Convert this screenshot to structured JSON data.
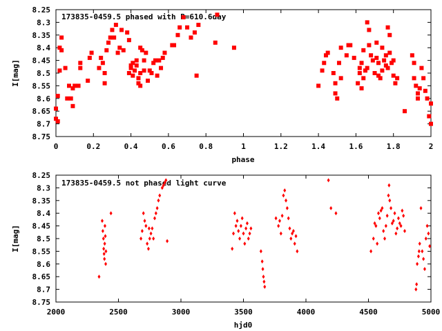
{
  "chart_data": [
    {
      "type": "scatter",
      "title": "173835-0459.5 phased with P=610.6day",
      "xlabel": "phase",
      "ylabel": "I[mag]",
      "xlim": [
        0,
        2
      ],
      "ylim": [
        8.25,
        8.75
      ],
      "y_inverted": true,
      "x_ticks": [
        "0",
        "0.2",
        "0.4",
        "0.6",
        "0.8",
        "1",
        "1.2",
        "1.4",
        "1.6",
        "1.8",
        "2"
      ],
      "y_ticks": [
        "8.25",
        "8.3",
        "8.35",
        "8.4",
        "8.45",
        "8.5",
        "8.55",
        "8.6",
        "8.65",
        "8.7",
        "8.75"
      ],
      "marker_color": "#ff0000",
      "marker": "filled-square",
      "points": [
        [
          0.0,
          8.64
        ],
        [
          0.0,
          8.68
        ],
        [
          0.01,
          8.69
        ],
        [
          0.01,
          8.59
        ],
        [
          0.02,
          8.49
        ],
        [
          0.02,
          8.4
        ],
        [
          0.03,
          8.36
        ],
        [
          0.03,
          8.41
        ],
        [
          0.05,
          8.48
        ],
        [
          0.06,
          8.6
        ],
        [
          0.07,
          8.55
        ],
        [
          0.08,
          8.6
        ],
        [
          0.09,
          8.63
        ],
        [
          0.09,
          8.56
        ],
        [
          0.1,
          8.55
        ],
        [
          0.12,
          8.55
        ],
        [
          0.13,
          8.48
        ],
        [
          0.13,
          8.46
        ],
        [
          0.17,
          8.53
        ],
        [
          0.18,
          8.44
        ],
        [
          0.19,
          8.42
        ],
        [
          0.23,
          8.48
        ],
        [
          0.24,
          8.44
        ],
        [
          0.25,
          8.46
        ],
        [
          0.26,
          8.5
        ],
        [
          0.26,
          8.54
        ],
        [
          0.27,
          8.41
        ],
        [
          0.28,
          8.38
        ],
        [
          0.29,
          8.36
        ],
        [
          0.3,
          8.33
        ],
        [
          0.31,
          8.36
        ],
        [
          0.32,
          8.31
        ],
        [
          0.33,
          8.42
        ],
        [
          0.34,
          8.4
        ],
        [
          0.35,
          8.33
        ],
        [
          0.36,
          8.41
        ],
        [
          0.38,
          8.34
        ],
        [
          0.39,
          8.37
        ],
        [
          0.39,
          8.5
        ],
        [
          0.4,
          8.48
        ],
        [
          0.4,
          8.47
        ],
        [
          0.41,
          8.46
        ],
        [
          0.41,
          8.51
        ],
        [
          0.42,
          8.49
        ],
        [
          0.43,
          8.45
        ],
        [
          0.43,
          8.47
        ],
        [
          0.44,
          8.52
        ],
        [
          0.44,
          8.54
        ],
        [
          0.45,
          8.5
        ],
        [
          0.45,
          8.55
        ],
        [
          0.45,
          8.4
        ],
        [
          0.46,
          8.41
        ],
        [
          0.47,
          8.49
        ],
        [
          0.47,
          8.45
        ],
        [
          0.48,
          8.42
        ],
        [
          0.49,
          8.53
        ],
        [
          0.5,
          8.49
        ],
        [
          0.51,
          8.5
        ],
        [
          0.52,
          8.46
        ],
        [
          0.53,
          8.45
        ],
        [
          0.54,
          8.51
        ],
        [
          0.55,
          8.45
        ],
        [
          0.56,
          8.48
        ],
        [
          0.57,
          8.44
        ],
        [
          0.58,
          8.42
        ],
        [
          0.62,
          8.39
        ],
        [
          0.63,
          8.39
        ],
        [
          0.65,
          8.35
        ],
        [
          0.66,
          8.32
        ],
        [
          0.68,
          8.28
        ],
        [
          0.7,
          8.32
        ],
        [
          0.72,
          8.36
        ],
        [
          0.74,
          8.34
        ],
        [
          0.75,
          8.51
        ],
        [
          0.76,
          8.31
        ],
        [
          0.85,
          8.38
        ],
        [
          0.86,
          8.27
        ],
        [
          0.95,
          8.4
        ],
        [
          1.4,
          8.55
        ],
        [
          1.42,
          8.49
        ],
        [
          1.43,
          8.46
        ],
        [
          1.44,
          8.43
        ],
        [
          1.45,
          8.42
        ],
        [
          1.48,
          8.5
        ],
        [
          1.49,
          8.58
        ],
        [
          1.49,
          8.54
        ],
        [
          1.5,
          8.6
        ],
        [
          1.51,
          8.46
        ],
        [
          1.52,
          8.4
        ],
        [
          1.52,
          8.52
        ],
        [
          1.55,
          8.43
        ],
        [
          1.56,
          8.39
        ],
        [
          1.57,
          8.39
        ],
        [
          1.59,
          8.44
        ],
        [
          1.61,
          8.54
        ],
        [
          1.62,
          8.48
        ],
        [
          1.62,
          8.5
        ],
        [
          1.63,
          8.46
        ],
        [
          1.63,
          8.56
        ],
        [
          1.64,
          8.41
        ],
        [
          1.64,
          8.52
        ],
        [
          1.65,
          8.49
        ],
        [
          1.66,
          8.48
        ],
        [
          1.66,
          8.3
        ],
        [
          1.67,
          8.33
        ],
        [
          1.67,
          8.39
        ],
        [
          1.68,
          8.43
        ],
        [
          1.69,
          8.45
        ],
        [
          1.7,
          8.5
        ],
        [
          1.71,
          8.38
        ],
        [
          1.71,
          8.44
        ],
        [
          1.72,
          8.46
        ],
        [
          1.72,
          8.51
        ],
        [
          1.73,
          8.52
        ],
        [
          1.74,
          8.49
        ],
        [
          1.74,
          8.4
        ],
        [
          1.75,
          8.45
        ],
        [
          1.76,
          8.43
        ],
        [
          1.76,
          8.47
        ],
        [
          1.77,
          8.32
        ],
        [
          1.77,
          8.48
        ],
        [
          1.78,
          8.42
        ],
        [
          1.78,
          8.35
        ],
        [
          1.79,
          8.46
        ],
        [
          1.8,
          8.45
        ],
        [
          1.8,
          8.51
        ],
        [
          1.81,
          8.54
        ],
        [
          1.82,
          8.52
        ],
        [
          1.86,
          8.65
        ],
        [
          1.9,
          8.43
        ],
        [
          1.91,
          8.46
        ],
        [
          1.91,
          8.52
        ],
        [
          1.92,
          8.55
        ],
        [
          1.93,
          8.58
        ],
        [
          1.93,
          8.6
        ],
        [
          1.94,
          8.56
        ],
        [
          1.95,
          8.48
        ],
        [
          1.96,
          8.52
        ],
        [
          1.97,
          8.57
        ],
        [
          1.98,
          8.6
        ],
        [
          1.99,
          8.67
        ],
        [
          2.0,
          8.7
        ],
        [
          2.0,
          8.62
        ]
      ]
    },
    {
      "type": "scatter",
      "title": "173835-0459.5 not phased light curve",
      "xlabel": "hjd0",
      "ylabel": "I[mag]",
      "xlim": [
        2000,
        5000
      ],
      "ylim": [
        8.25,
        8.75
      ],
      "y_inverted": true,
      "x_ticks": [
        "2000",
        "2500",
        "3000",
        "3500",
        "4000",
        "4500",
        "5000"
      ],
      "y_ticks": [
        "8.25",
        "8.3",
        "8.35",
        "8.4",
        "8.45",
        "8.5",
        "8.55",
        "8.6",
        "8.65",
        "8.7",
        "8.75"
      ],
      "marker_color": "#ff0000",
      "marker": "filled-diamond",
      "points": [
        [
          2345,
          8.65
        ],
        [
          2370,
          8.43
        ],
        [
          2375,
          8.47
        ],
        [
          2380,
          8.5
        ],
        [
          2382,
          8.54
        ],
        [
          2385,
          8.56
        ],
        [
          2388,
          8.58
        ],
        [
          2390,
          8.52
        ],
        [
          2392,
          8.45
        ],
        [
          2395,
          8.49
        ],
        [
          2398,
          8.6
        ],
        [
          2400,
          8.55
        ],
        [
          2440,
          8.4
        ],
        [
          2680,
          8.5
        ],
        [
          2690,
          8.47
        ],
        [
          2700,
          8.4
        ],
        [
          2710,
          8.43
        ],
        [
          2720,
          8.45
        ],
        [
          2730,
          8.52
        ],
        [
          2740,
          8.54
        ],
        [
          2745,
          8.46
        ],
        [
          2750,
          8.5
        ],
        [
          2760,
          8.48
        ],
        [
          2770,
          8.46
        ],
        [
          2780,
          8.5
        ],
        [
          2790,
          8.42
        ],
        [
          2800,
          8.4
        ],
        [
          2810,
          8.38
        ],
        [
          2820,
          8.35
        ],
        [
          2830,
          8.33
        ],
        [
          2850,
          8.3
        ],
        [
          2860,
          8.29
        ],
        [
          2870,
          8.28
        ],
        [
          2880,
          8.27
        ],
        [
          2890,
          8.51
        ],
        [
          3410,
          8.54
        ],
        [
          3420,
          8.48
        ],
        [
          3430,
          8.4
        ],
        [
          3440,
          8.45
        ],
        [
          3450,
          8.43
        ],
        [
          3460,
          8.47
        ],
        [
          3470,
          8.5
        ],
        [
          3480,
          8.45
        ],
        [
          3490,
          8.42
        ],
        [
          3500,
          8.48
        ],
        [
          3510,
          8.52
        ],
        [
          3520,
          8.46
        ],
        [
          3530,
          8.44
        ],
        [
          3540,
          8.5
        ],
        [
          3550,
          8.48
        ],
        [
          3560,
          8.46
        ],
        [
          3640,
          8.55
        ],
        [
          3650,
          8.59
        ],
        [
          3655,
          8.62
        ],
        [
          3660,
          8.65
        ],
        [
          3665,
          8.67
        ],
        [
          3670,
          8.69
        ],
        [
          3760,
          8.42
        ],
        [
          3780,
          8.45
        ],
        [
          3790,
          8.43
        ],
        [
          3800,
          8.48
        ],
        [
          3810,
          8.41
        ],
        [
          3820,
          8.33
        ],
        [
          3830,
          8.31
        ],
        [
          3840,
          8.35
        ],
        [
          3850,
          8.38
        ],
        [
          3860,
          8.42
        ],
        [
          3870,
          8.46
        ],
        [
          3880,
          8.5
        ],
        [
          3890,
          8.48
        ],
        [
          3900,
          8.47
        ],
        [
          3910,
          8.52
        ],
        [
          3920,
          8.49
        ],
        [
          3930,
          8.55
        ],
        [
          4180,
          8.27
        ],
        [
          4200,
          8.38
        ],
        [
          4240,
          8.4
        ],
        [
          4520,
          8.55
        ],
        [
          4540,
          8.5
        ],
        [
          4550,
          8.44
        ],
        [
          4560,
          8.45
        ],
        [
          4570,
          8.52
        ],
        [
          4580,
          8.4
        ],
        [
          4590,
          8.42
        ],
        [
          4600,
          8.39
        ],
        [
          4610,
          8.38
        ],
        [
          4620,
          8.47
        ],
        [
          4630,
          8.5
        ],
        [
          4640,
          8.45
        ],
        [
          4650,
          8.41
        ],
        [
          4660,
          8.33
        ],
        [
          4665,
          8.29
        ],
        [
          4670,
          8.35
        ],
        [
          4680,
          8.38
        ],
        [
          4690,
          8.44
        ],
        [
          4700,
          8.43
        ],
        [
          4710,
          8.4
        ],
        [
          4720,
          8.48
        ],
        [
          4730,
          8.46
        ],
        [
          4740,
          8.42
        ],
        [
          4750,
          8.44
        ],
        [
          4760,
          8.45
        ],
        [
          4770,
          8.39
        ],
        [
          4780,
          8.41
        ],
        [
          4790,
          8.47
        ],
        [
          4880,
          8.7
        ],
        [
          4885,
          8.68
        ],
        [
          4890,
          8.6
        ],
        [
          4900,
          8.57
        ],
        [
          4905,
          8.55
        ],
        [
          4910,
          8.52
        ],
        [
          4920,
          8.38
        ],
        [
          4930,
          8.55
        ],
        [
          4940,
          8.58
        ],
        [
          4950,
          8.62
        ],
        [
          4960,
          8.5
        ],
        [
          4970,
          8.45
        ],
        [
          4980,
          8.48
        ],
        [
          4990,
          8.53
        ]
      ]
    }
  ]
}
